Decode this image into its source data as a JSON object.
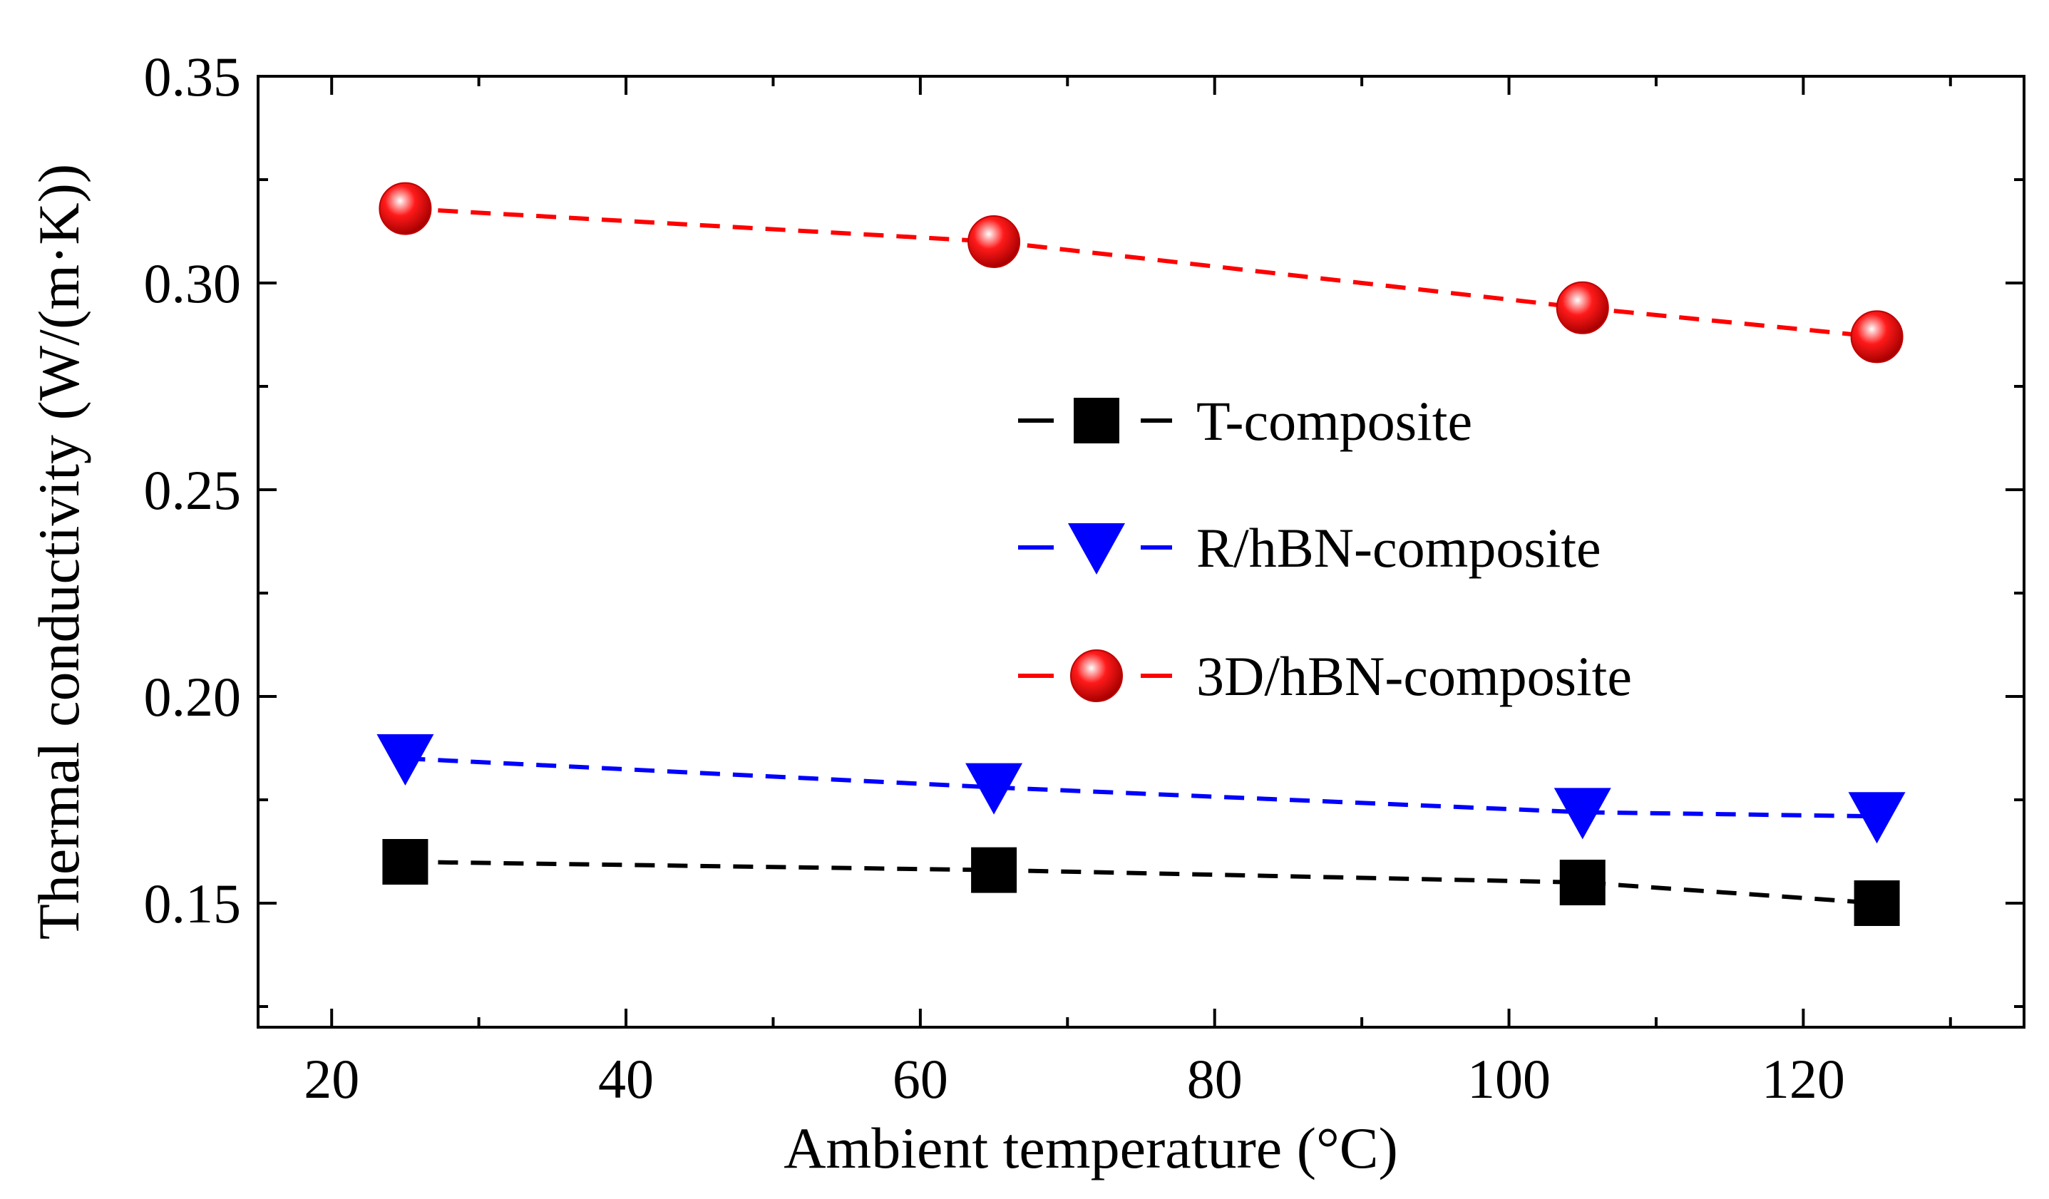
{
  "chart_data": {
    "type": "line",
    "xlabel": "Ambient temperature (°C)",
    "ylabel": "Thermal conductivity (W/(m·K))",
    "xlim": [
      15,
      135
    ],
    "ylim": [
      0.12,
      0.35
    ],
    "x_ticks": [
      20,
      40,
      60,
      80,
      100,
      120
    ],
    "x_tick_labels": [
      "20",
      "40",
      "60",
      "80",
      "100",
      "120"
    ],
    "x_minor_ticks": [
      30,
      50,
      70,
      90,
      110,
      130
    ],
    "y_ticks": [
      0.15,
      0.2,
      0.25,
      0.3,
      0.35
    ],
    "y_tick_labels": [
      "0.15",
      "0.20",
      "0.25",
      "0.30",
      "0.35"
    ],
    "y_minor_ticks": [
      0.125,
      0.175,
      0.225,
      0.275,
      0.325
    ],
    "grid": false,
    "legend_position": "center-right",
    "x": [
      25,
      65,
      105,
      125
    ],
    "series": [
      {
        "name": "T-composite",
        "marker": "square",
        "color": "#000000",
        "values": [
          0.16,
          0.158,
          0.155,
          0.15
        ]
      },
      {
        "name": "R/hBN-composite",
        "marker": "triangle-down",
        "color": "#0000ff",
        "values": [
          0.185,
          0.178,
          0.172,
          0.171
        ]
      },
      {
        "name": "3D/hBN-composite",
        "marker": "sphere",
        "color": "#ff0000",
        "values": [
          0.318,
          0.31,
          0.294,
          0.287
        ]
      }
    ]
  }
}
